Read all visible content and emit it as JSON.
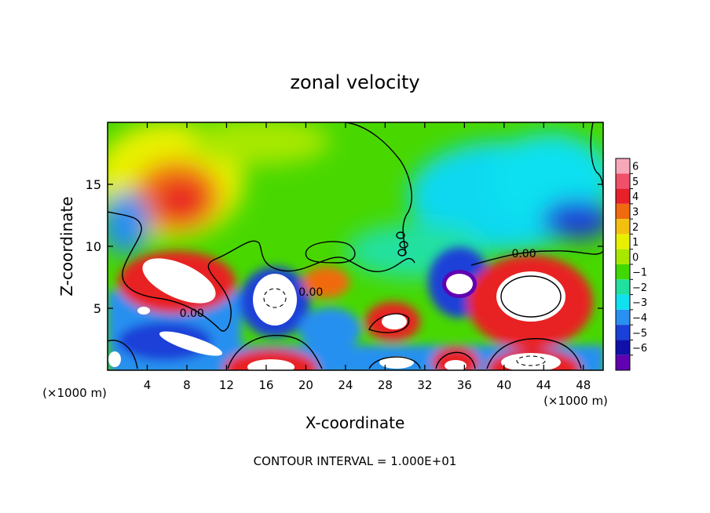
{
  "chart_data": {
    "type": "heatmap",
    "title": "zonal velocity",
    "xlabel": "X-coordinate",
    "ylabel": "Z-coordinate",
    "x_unit_left": "(×1000 m)",
    "x_unit_right": "(×1000 m)",
    "footer": "CONTOUR INTERVAL = 1.000E+01",
    "xlim": [
      0,
      50
    ],
    "ylim": [
      0,
      20
    ],
    "x_ticks": [
      4,
      8,
      12,
      16,
      20,
      24,
      28,
      32,
      36,
      40,
      44,
      48
    ],
    "y_ticks": [
      5,
      10,
      15
    ],
    "colorbar": {
      "levels": [
        6,
        5,
        4,
        3,
        2,
        1,
        0,
        -1,
        -2,
        -3,
        -4,
        -5,
        -6
      ],
      "colors": [
        "#f7a8b8",
        "#f0506a",
        "#e8202a",
        "#f06a10",
        "#f3c010",
        "#e8f000",
        "#a8e800",
        "#40d800",
        "#20e0a0",
        "#10e0f0",
        "#2890f0",
        "#1a40d8",
        "#1010a8",
        "#6000b0"
      ]
    },
    "contour_labels": [
      {
        "text": "0.00",
        "x": 8.5,
        "z": 4.3
      },
      {
        "text": "0.00",
        "x": 20.5,
        "z": 6.0
      },
      {
        "text": "0.00",
        "x": 42.0,
        "z": 9.1
      }
    ]
  }
}
